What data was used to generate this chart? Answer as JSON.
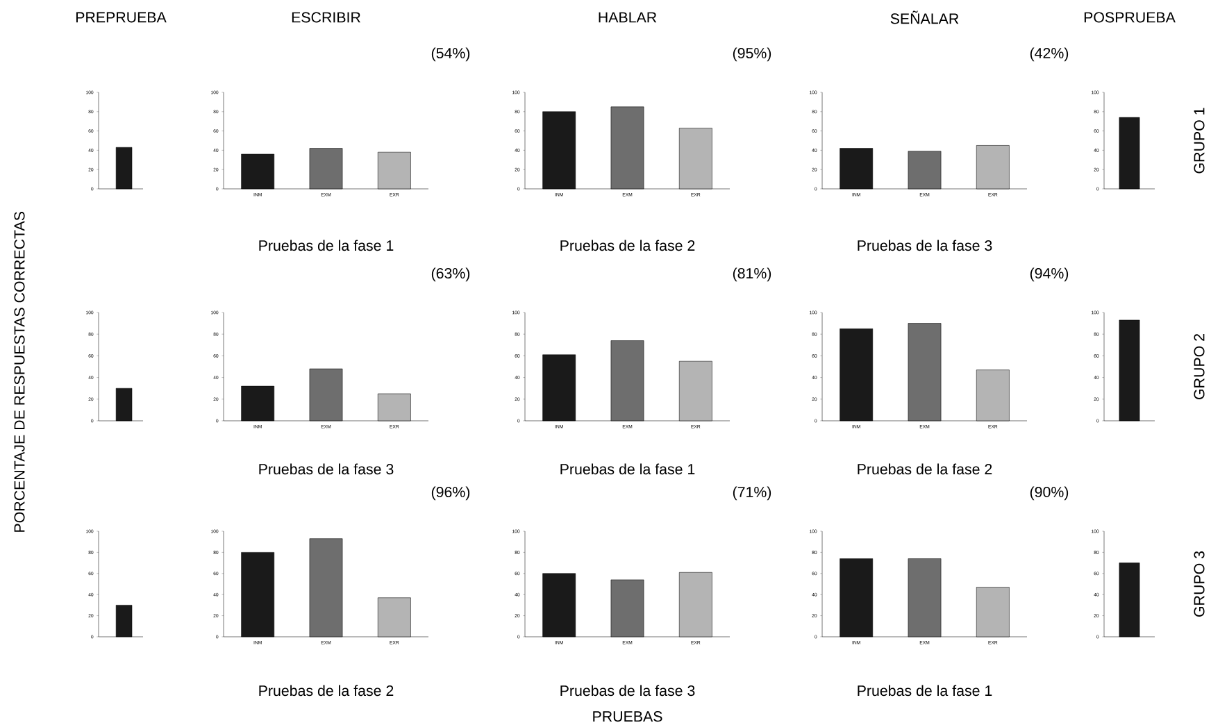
{
  "chart_data": [
    {
      "type": "bar",
      "title": "PREPRUEBA",
      "categories": [
        null
      ],
      "values": [
        43
      ],
      "colors": [
        "#1a1a1a"
      ],
      "ylim": [
        0,
        100
      ],
      "yticks": [
        0,
        20,
        40,
        60,
        80,
        100
      ]
    },
    {
      "type": "bar",
      "title": "ESCRIBIR",
      "annotations": [
        "(54%)"
      ],
      "xlabel": "Pruebas de la fase 1",
      "categories": [
        "INM",
        "EXM",
        "EXR"
      ],
      "values": [
        36,
        42,
        38
      ],
      "colors": [
        "#1a1a1a",
        "#6e6e6e",
        "#b4b4b4"
      ],
      "ylim": [
        0,
        100
      ],
      "yticks": [
        0,
        20,
        40,
        60,
        80,
        100
      ]
    },
    {
      "type": "bar",
      "title": "HABLAR",
      "annotations": [
        "(95%)"
      ],
      "xlabel": "Pruebas de la fase 2",
      "categories": [
        "INM",
        "EXM",
        "EXR"
      ],
      "values": [
        80,
        85,
        63
      ],
      "colors": [
        "#1a1a1a",
        "#6e6e6e",
        "#b4b4b4"
      ],
      "ylim": [
        0,
        100
      ],
      "yticks": [
        0,
        20,
        40,
        60,
        80,
        100
      ]
    },
    {
      "type": "bar",
      "title": "SEÑALAR",
      "annotations": [
        "(42%)"
      ],
      "xlabel": "Pruebas de la fase 3",
      "categories": [
        "INM",
        "EXM",
        "EXR"
      ],
      "values": [
        42,
        39,
        45
      ],
      "colors": [
        "#1a1a1a",
        "#6e6e6e",
        "#b4b4b4"
      ],
      "ylim": [
        0,
        100
      ],
      "yticks": [
        0,
        20,
        40,
        60,
        80,
        100
      ]
    },
    {
      "type": "bar",
      "title": "POSPRUEBA",
      "y2label": "GRUPO 1",
      "categories": [
        null
      ],
      "values": [
        74
      ],
      "colors": [
        "#1a1a1a"
      ],
      "ylim": [
        0,
        100
      ],
      "yticks": [
        0,
        20,
        40,
        60,
        80,
        100
      ]
    },
    {
      "type": "bar",
      "ylabel": "PORCENTAJE DE RESPUESTAS CORRECTAS",
      "categories": [
        null
      ],
      "values": [
        30
      ],
      "colors": [
        "#1a1a1a"
      ],
      "ylim": [
        0,
        100
      ],
      "yticks": [
        0,
        20,
        40,
        60,
        80,
        100
      ]
    },
    {
      "type": "bar",
      "annotations": [
        "(63%)"
      ],
      "xlabel": "Pruebas de la fase 3",
      "categories": [
        "INM",
        "EXM",
        "EXR"
      ],
      "values": [
        32,
        48,
        25
      ],
      "colors": [
        "#1a1a1a",
        "#6e6e6e",
        "#b4b4b4"
      ],
      "ylim": [
        0,
        100
      ],
      "yticks": [
        0,
        20,
        40,
        60,
        80,
        100
      ]
    },
    {
      "type": "bar",
      "annotations": [
        "(81%)"
      ],
      "xlabel": "Pruebas de la fase 1",
      "categories": [
        "INM",
        "EXM",
        "EXR"
      ],
      "values": [
        61,
        74,
        55
      ],
      "colors": [
        "#1a1a1a",
        "#6e6e6e",
        "#b4b4b4"
      ],
      "ylim": [
        0,
        100
      ],
      "yticks": [
        0,
        20,
        40,
        60,
        80,
        100
      ]
    },
    {
      "type": "bar",
      "annotations": [
        "(94%)"
      ],
      "xlabel": "Pruebas de la fase 2",
      "categories": [
        "INM",
        "EXM",
        "EXR"
      ],
      "values": [
        85,
        90,
        47
      ],
      "colors": [
        "#1a1a1a",
        "#6e6e6e",
        "#b4b4b4"
      ],
      "ylim": [
        0,
        100
      ],
      "yticks": [
        0,
        20,
        40,
        60,
        80,
        100
      ]
    },
    {
      "type": "bar",
      "y2label": "GRUPO 2",
      "categories": [
        null
      ],
      "values": [
        93
      ],
      "colors": [
        "#1a1a1a"
      ],
      "ylim": [
        0,
        100
      ],
      "yticks": [
        0,
        20,
        40,
        60,
        80,
        100
      ]
    },
    {
      "type": "bar",
      "categories": [
        null
      ],
      "values": [
        30
      ],
      "colors": [
        "#1a1a1a"
      ],
      "ylim": [
        0,
        100
      ],
      "yticks": [
        0,
        20,
        40,
        60,
        80,
        100
      ]
    },
    {
      "type": "bar",
      "annotations": [
        "(96%)"
      ],
      "xlabel": "Pruebas de la fase 2",
      "categories": [
        "INM",
        "EXM",
        "EXR"
      ],
      "values": [
        80,
        93,
        37
      ],
      "colors": [
        "#1a1a1a",
        "#6e6e6e",
        "#b4b4b4"
      ],
      "ylim": [
        0,
        100
      ],
      "yticks": [
        0,
        20,
        40,
        60,
        80,
        100
      ]
    },
    {
      "type": "bar",
      "annotations": [
        "(71%)",
        "PRUEBAS"
      ],
      "xlabel": "Pruebas de la fase 3",
      "categories": [
        "INM",
        "EXM",
        "EXR"
      ],
      "values": [
        60,
        54,
        61
      ],
      "colors": [
        "#1a1a1a",
        "#6e6e6e",
        "#b4b4b4"
      ],
      "ylim": [
        0,
        100
      ],
      "yticks": [
        0,
        20,
        40,
        60,
        80,
        100
      ]
    },
    {
      "type": "bar",
      "annotations": [
        "(90%)"
      ],
      "xlabel": "Pruebas de la fase 1",
      "categories": [
        "INM",
        "EXM",
        "EXR"
      ],
      "values": [
        74,
        74,
        47
      ],
      "colors": [
        "#1a1a1a",
        "#6e6e6e",
        "#b4b4b4"
      ],
      "ylim": [
        0,
        100
      ],
      "yticks": [
        0,
        20,
        40,
        60,
        80,
        100
      ]
    },
    {
      "type": "bar",
      "y2label": "GRUPO 3",
      "categories": [
        null
      ],
      "values": [
        70
      ],
      "colors": [
        "#1a1a1a"
      ],
      "ylim": [
        0,
        100
      ],
      "yticks": [
        0,
        20,
        40,
        60,
        80,
        100
      ]
    }
  ]
}
